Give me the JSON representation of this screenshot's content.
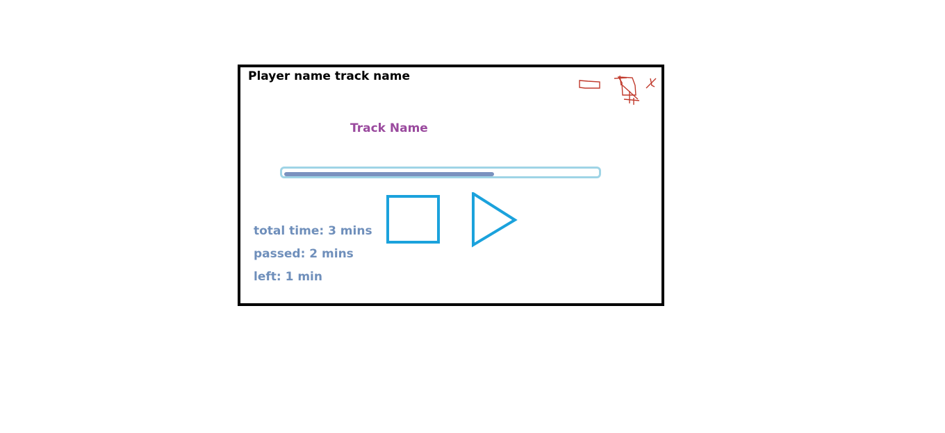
{
  "window": {
    "title": "Player name track name"
  },
  "window_controls": {
    "minimize_icon": "minimize-icon",
    "maximize_icon": "maximize-icon",
    "close_icon": "close-icon"
  },
  "track": {
    "name": "Track Name"
  },
  "progress": {
    "fraction": 0.67
  },
  "time": {
    "total": "total time: 3 mins",
    "passed": "passed: 2 mins",
    "left": "left: 1 min"
  },
  "controls": {
    "stop_icon": "stop-icon",
    "play_icon": "play-icon"
  },
  "colors": {
    "frame": "#000000",
    "track_name": "#9a4a9e",
    "time_text": "#6f8fbb",
    "progress_border": "#9fd4e6",
    "progress_fill": "#7a92bf",
    "control_blue": "#1ba2dc",
    "window_control_red": "#c0392b"
  }
}
